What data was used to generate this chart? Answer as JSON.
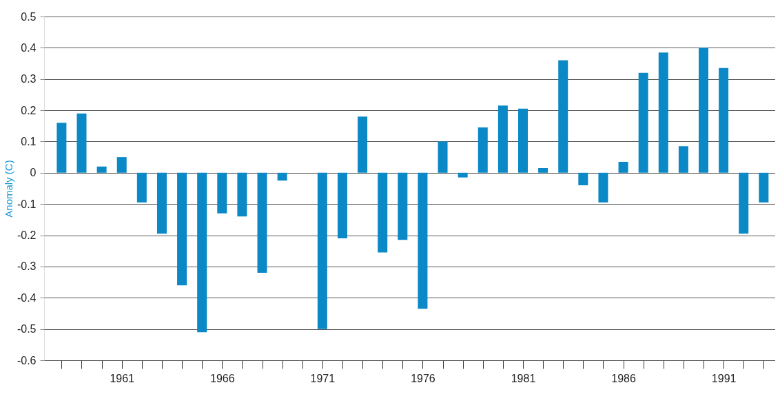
{
  "chart_data": {
    "type": "bar",
    "ylabel": "Anomaly (C)",
    "x": [
      1958,
      1959,
      1960,
      1961,
      1962,
      1963,
      1964,
      1965,
      1966,
      1967,
      1968,
      1969,
      1970,
      1971,
      1972,
      1973,
      1974,
      1975,
      1976,
      1977,
      1978,
      1979,
      1980,
      1981,
      1982,
      1983,
      1984,
      1985,
      1986,
      1987,
      1988,
      1989,
      1990,
      1991,
      1992,
      1993
    ],
    "series": [
      {
        "color": "#0b88c6",
        "values": [
          0.16,
          0.19,
          0.02,
          0.05,
          -0.095,
          -0.195,
          -0.36,
          -0.51,
          -0.13,
          -0.14,
          -0.32,
          -0.025,
          null,
          -0.5,
          -0.21,
          0.18,
          -0.255,
          -0.215,
          -0.435,
          0.1,
          -0.015,
          0.145,
          0.215,
          0.205,
          0.015,
          0.36,
          -0.04,
          -0.095,
          0.035,
          0.32,
          0.385,
          0.085,
          0.4,
          0.335,
          -0.195,
          -0.095
        ]
      }
    ],
    "xlim": [
      1957.3,
      1993.4
    ],
    "xticks": [
      {
        "value": 1958,
        "label": null
      },
      {
        "value": 1959,
        "label": null
      },
      {
        "value": 1960,
        "label": null
      },
      1961,
      {
        "value": 1962,
        "label": null
      },
      {
        "value": 1963,
        "label": null
      },
      {
        "value": 1964,
        "label": null
      },
      {
        "value": 1965,
        "label": null
      },
      1966,
      {
        "value": 1967,
        "label": null
      },
      {
        "value": 1968,
        "label": null
      },
      {
        "value": 1969,
        "label": null
      },
      {
        "value": 1970,
        "label": null
      },
      1971,
      {
        "value": 1972,
        "label": null
      },
      {
        "value": 1973,
        "label": null
      },
      {
        "value": 1974,
        "label": null
      },
      {
        "value": 1975,
        "label": null
      },
      1976,
      {
        "value": 1977,
        "label": null
      },
      {
        "value": 1978,
        "label": null
      },
      {
        "value": 1979,
        "label": null
      },
      {
        "value": 1980,
        "label": null
      },
      1981,
      {
        "value": 1982,
        "label": null
      },
      {
        "value": 1983,
        "label": null
      },
      {
        "value": 1984,
        "label": null
      },
      {
        "value": 1985,
        "label": null
      },
      1986,
      {
        "value": 1987,
        "label": null
      },
      {
        "value": 1988,
        "label": null
      },
      {
        "value": 1989,
        "label": null
      },
      {
        "value": 1990,
        "label": null
      },
      1991,
      {
        "value": 1992,
        "label": null
      },
      {
        "value": 1993,
        "label": null
      }
    ],
    "ylim": [
      -0.6,
      0.5
    ],
    "yticks": [
      -0.6,
      -0.5,
      -0.4,
      -0.3,
      -0.2,
      -0.1,
      0,
      0.1,
      0.2,
      0.3,
      0.4,
      0.5
    ],
    "grid": "y",
    "legend": false
  }
}
